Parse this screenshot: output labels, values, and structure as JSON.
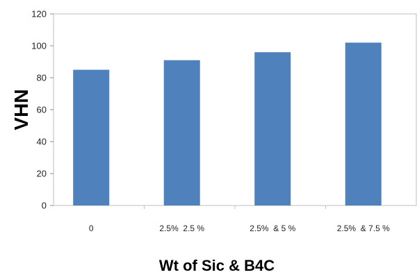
{
  "chart_data": {
    "type": "bar",
    "title": "",
    "xlabel": "Wt of Sic & B4C",
    "ylabel": "VHN",
    "categories": [
      "0",
      "2.5%  2.5 %",
      "2.5%  & 5 %",
      "2.5%  & 7.5 %"
    ],
    "values": [
      85,
      91,
      96,
      102
    ],
    "ylim": [
      0,
      120
    ],
    "yticks": [
      0,
      20,
      40,
      60,
      80,
      100,
      120
    ],
    "bar_color": "#4f81bd",
    "grid": false,
    "legend": "none"
  }
}
